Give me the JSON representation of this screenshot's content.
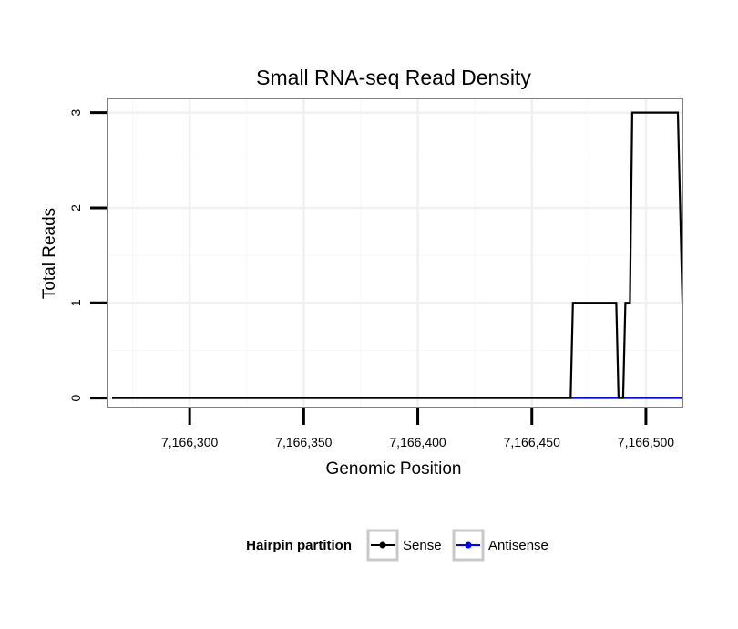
{
  "chart_data": {
    "type": "line",
    "title": "Small RNA-seq Read Density",
    "xlabel": "Genomic Position",
    "ylabel": "Total Reads",
    "xlim": [
      7166264,
      7166516
    ],
    "ylim": [
      -0.1,
      3.15
    ],
    "x_ticks": [
      7166300,
      7166350,
      7166400,
      7166450,
      7166500
    ],
    "x_tick_labels": [
      "7,166,300",
      "7,166,350",
      "7,166,400",
      "7,166,450",
      "7,166,500"
    ],
    "y_ticks": [
      0,
      1,
      2,
      3
    ],
    "y_tick_labels": [
      "0",
      "1",
      "2",
      "3"
    ],
    "grid": true,
    "legend": {
      "title": "Hairpin partition",
      "position": "bottom"
    },
    "series": [
      {
        "name": "Sense",
        "color": "#000000",
        "x": [
          7166266,
          7166467,
          7166468,
          7166487,
          7166488,
          7166490,
          7166491,
          7166493,
          7166494,
          7166496,
          7166514,
          7166516
        ],
        "y": [
          0,
          0,
          1,
          1,
          0,
          0,
          1,
          1,
          3,
          3,
          3,
          1
        ]
      },
      {
        "name": "Antisense",
        "color": "#0000ff",
        "x": [
          7166266,
          7166516
        ],
        "y": [
          0,
          0
        ]
      }
    ]
  }
}
